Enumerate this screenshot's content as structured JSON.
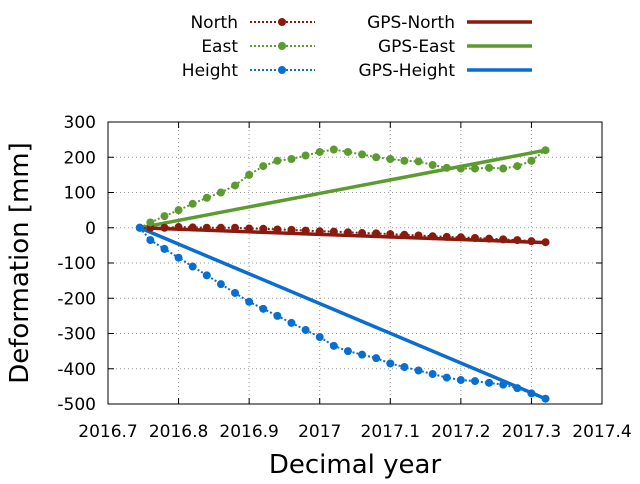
{
  "chart_data": {
    "type": "line",
    "title": "",
    "xlabel": "Decimal year",
    "ylabel": "Deformation [mm]",
    "xlim": [
      2016.7,
      2017.4
    ],
    "ylim": [
      -500,
      300
    ],
    "xticks": [
      2016.7,
      2016.8,
      2016.9,
      2017.0,
      2017.1,
      2017.2,
      2017.3,
      2017.4
    ],
    "xtick_labels": [
      "2016.7",
      "2016.8",
      "2016.9",
      "2017",
      "2017.1",
      "2017.2",
      "2017.3",
      "2017.4"
    ],
    "yticks": [
      -500,
      -400,
      -300,
      -200,
      -100,
      0,
      100,
      200,
      300
    ],
    "ytick_labels": [
      "-500",
      "-400",
      "-300",
      "-200",
      "-100",
      "0",
      "100",
      "200",
      "300"
    ],
    "grid": true,
    "legend_position": "top-outside",
    "series": [
      {
        "name": "North",
        "color": "#8b1a0e",
        "style": "dotted-markers",
        "x": [
          2016.745,
          2016.76,
          2016.78,
          2016.8,
          2016.82,
          2016.84,
          2016.86,
          2016.88,
          2016.9,
          2016.92,
          2016.94,
          2016.96,
          2016.98,
          2017.0,
          2017.02,
          2017.04,
          2017.06,
          2017.08,
          2017.1,
          2017.12,
          2017.14,
          2017.16,
          2017.18,
          2017.2,
          2017.22,
          2017.24,
          2017.26,
          2017.28,
          2017.3,
          2017.32
        ],
        "y": [
          0,
          0,
          0,
          2,
          1,
          0,
          0,
          0,
          -2,
          -3,
          -5,
          -6,
          -8,
          -10,
          -11,
          -13,
          -15,
          -16,
          -18,
          -20,
          -22,
          -24,
          -26,
          -27,
          -29,
          -31,
          -33,
          -35,
          -38,
          -41
        ]
      },
      {
        "name": "East",
        "color": "#5b9b2f",
        "style": "dotted-markers",
        "x": [
          2016.745,
          2016.76,
          2016.78,
          2016.8,
          2016.82,
          2016.84,
          2016.86,
          2016.88,
          2016.9,
          2016.92,
          2016.94,
          2016.96,
          2016.98,
          2017.0,
          2017.02,
          2017.04,
          2017.06,
          2017.08,
          2017.1,
          2017.12,
          2017.14,
          2017.16,
          2017.18,
          2017.2,
          2017.22,
          2017.24,
          2017.26,
          2017.28,
          2017.3,
          2017.32
        ],
        "y": [
          0,
          15,
          33,
          50,
          68,
          85,
          100,
          120,
          150,
          175,
          190,
          195,
          205,
          215,
          222,
          215,
          208,
          200,
          195,
          190,
          188,
          178,
          170,
          168,
          168,
          170,
          168,
          175,
          190,
          220
        ]
      },
      {
        "name": "Height",
        "color": "#0a6ed1",
        "style": "dotted-markers",
        "x": [
          2016.745,
          2016.76,
          2016.78,
          2016.8,
          2016.82,
          2016.84,
          2016.86,
          2016.88,
          2016.9,
          2016.92,
          2016.94,
          2016.96,
          2016.98,
          2017.0,
          2017.02,
          2017.04,
          2017.06,
          2017.08,
          2017.1,
          2017.12,
          2017.14,
          2017.16,
          2017.18,
          2017.2,
          2017.22,
          2017.24,
          2017.26,
          2017.28,
          2017.3,
          2017.32
        ],
        "y": [
          0,
          -35,
          -60,
          -85,
          -110,
          -135,
          -160,
          -185,
          -210,
          -230,
          -250,
          -270,
          -290,
          -310,
          -335,
          -350,
          -360,
          -370,
          -385,
          -395,
          -405,
          -415,
          -425,
          -432,
          -435,
          -440,
          -445,
          -455,
          -470,
          -485
        ]
      },
      {
        "name": "GPS-North",
        "color": "#8b1a0e",
        "style": "solid",
        "x": [
          2016.745,
          2017.32
        ],
        "y": [
          0,
          -42
        ]
      },
      {
        "name": "GPS-East",
        "color": "#5b9b2f",
        "style": "solid",
        "x": [
          2016.745,
          2017.32
        ],
        "y": [
          0,
          220
        ]
      },
      {
        "name": "GPS-Height",
        "color": "#0a6ed1",
        "style": "solid",
        "x": [
          2016.745,
          2017.32
        ],
        "y": [
          0,
          -485
        ]
      }
    ]
  }
}
